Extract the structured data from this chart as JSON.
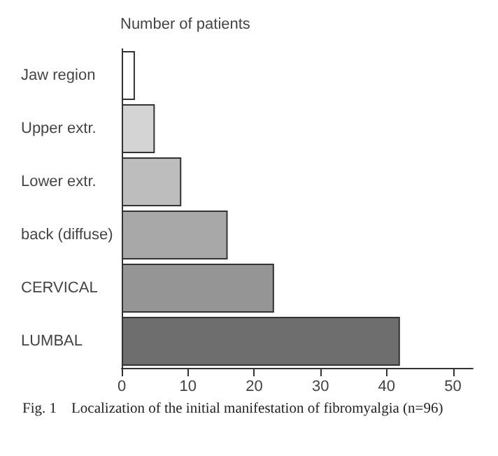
{
  "chart_data": {
    "type": "bar",
    "orientation": "horizontal",
    "xlabel": "Number of patients",
    "categories": [
      "Jaw region",
      "Upper extr.",
      "Lower extr.",
      "back (diffuse)",
      "CERVICAL",
      "LUMBAL"
    ],
    "values": [
      2,
      5,
      9,
      16,
      23,
      42
    ],
    "colors": [
      "#ffffff",
      "#d4d4d4",
      "#bdbdbd",
      "#a8a8a8",
      "#959595",
      "#6e6e6e"
    ],
    "xlim": [
      0,
      53
    ],
    "xticks": [
      0,
      10,
      20,
      30,
      40,
      50
    ],
    "grid": false,
    "annotations": [
      "Fig. 1    Localization of the initial manifestation of fibromyalgia (n=96)"
    ]
  }
}
